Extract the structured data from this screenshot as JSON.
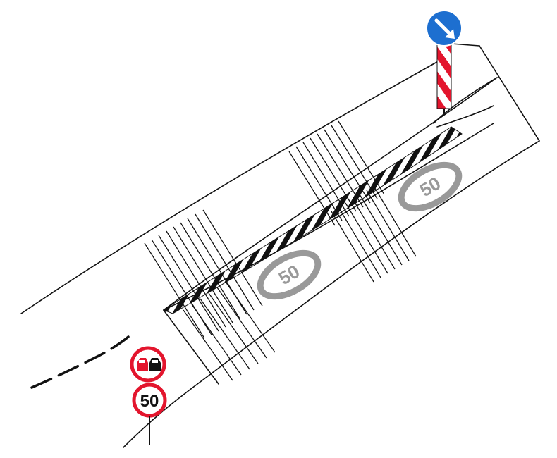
{
  "signs": {
    "speed_limit": {
      "value": "50",
      "ring_color": "#e3152d"
    },
    "no_overtaking": {
      "ring_color": "#e3152d",
      "left_car_color": "#e3152d",
      "right_car_color": "#111111",
      "icon": "no-overtaking-icon"
    },
    "keep_right": {
      "color": "#1d6fd0",
      "icon": "arrow-down-right-icon"
    },
    "delineator": {
      "stripe_colors": [
        "#e3152d",
        "#ffffff"
      ]
    }
  },
  "road_markings": {
    "marking_color": "#999999",
    "symbol": "speed-limit-marking-icon",
    "symbol_text": "50"
  }
}
